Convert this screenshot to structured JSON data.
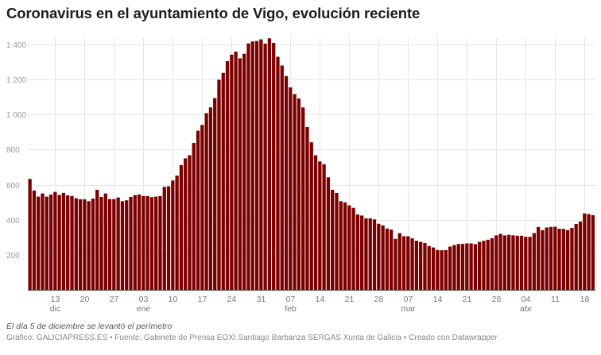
{
  "title": "Coronavirus en el ayuntamiento de Vigo, evolución reciente",
  "note": "El día 5 de diciembre se levantó el perímetro",
  "source": "Gráfico: GALICIAPRESS.ES • Fuente: Gabinete de Prensa EOXI Santiago Barbanza SERGAS Xunta de Galicia • Creado con Datawrapper",
  "chart_data": {
    "type": "bar",
    "title": "Coronavirus en el ayuntamiento de Vigo, evolución reciente",
    "xlabel": "",
    "ylabel": "",
    "ylim": [
      0,
      1450
    ],
    "grid": true,
    "bar_color": "#7d0000",
    "y_ticks": [
      {
        "value": 200,
        "label": "200"
      },
      {
        "value": 400,
        "label": "400"
      },
      {
        "value": 600,
        "label": "600"
      },
      {
        "value": 800,
        "label": "800"
      },
      {
        "value": 1000,
        "label": "1 000"
      },
      {
        "value": 1200,
        "label": "1 200"
      },
      {
        "value": 1400,
        "label": "1 400"
      }
    ],
    "x_ticks": [
      {
        "category": "13 dic",
        "label": "13",
        "month": "dic"
      },
      {
        "category": "20 dic",
        "label": "20",
        "month": ""
      },
      {
        "category": "27 dic",
        "label": "27",
        "month": ""
      },
      {
        "category": "03 ene",
        "label": "03",
        "month": "ene"
      },
      {
        "category": "10 ene",
        "label": "10",
        "month": ""
      },
      {
        "category": "17 ene",
        "label": "17",
        "month": ""
      },
      {
        "category": "24 ene",
        "label": "24",
        "month": ""
      },
      {
        "category": "31 ene",
        "label": "31",
        "month": ""
      },
      {
        "category": "07 feb",
        "label": "07",
        "month": "feb"
      },
      {
        "category": "14 feb",
        "label": "14",
        "month": ""
      },
      {
        "category": "21 feb",
        "label": "21",
        "month": ""
      },
      {
        "category": "28 feb",
        "label": "28",
        "month": ""
      },
      {
        "category": "07 mar",
        "label": "07",
        "month": "mar"
      },
      {
        "category": "14 mar",
        "label": "14",
        "month": ""
      },
      {
        "category": "21 mar",
        "label": "21",
        "month": ""
      },
      {
        "category": "28 mar",
        "label": "28",
        "month": ""
      },
      {
        "category": "04 abr",
        "label": "04",
        "month": "abr"
      },
      {
        "category": "11 abr",
        "label": "11",
        "month": ""
      },
      {
        "category": "18 abr",
        "label": "18",
        "month": ""
      }
    ],
    "categories": [
      "07 dic",
      "08 dic",
      "09 dic",
      "10 dic",
      "11 dic",
      "12 dic",
      "13 dic",
      "14 dic",
      "15 dic",
      "16 dic",
      "17 dic",
      "18 dic",
      "19 dic",
      "20 dic",
      "21 dic",
      "22 dic",
      "23 dic",
      "24 dic",
      "25 dic",
      "26 dic",
      "27 dic",
      "28 dic",
      "29 dic",
      "30 dic",
      "31 dic",
      "01 ene",
      "02 ene",
      "03 ene",
      "04 ene",
      "05 ene",
      "06 ene",
      "07 ene",
      "08 ene",
      "09 ene",
      "10 ene",
      "11 ene",
      "12 ene",
      "13 ene",
      "14 ene",
      "15 ene",
      "16 ene",
      "17 ene",
      "18 ene",
      "19 ene",
      "20 ene",
      "21 ene",
      "22 ene",
      "23 ene",
      "24 ene",
      "25 ene",
      "26 ene",
      "27 ene",
      "28 ene",
      "29 ene",
      "30 ene",
      "31 ene",
      "01 feb",
      "02 feb",
      "03 feb",
      "04 feb",
      "05 feb",
      "06 feb",
      "07 feb",
      "08 feb",
      "09 feb",
      "10 feb",
      "11 feb",
      "12 feb",
      "13 feb",
      "14 feb",
      "15 feb",
      "16 feb",
      "17 feb",
      "18 feb",
      "19 feb",
      "20 feb",
      "21 feb",
      "22 feb",
      "23 feb",
      "24 feb",
      "25 feb",
      "26 feb",
      "27 feb",
      "28 feb",
      "01 mar",
      "02 mar",
      "03 mar",
      "04 mar",
      "05 mar",
      "06 mar",
      "07 mar",
      "08 mar",
      "09 mar",
      "10 mar",
      "11 mar",
      "12 mar",
      "13 mar",
      "14 mar",
      "15 mar",
      "16 mar",
      "17 mar",
      "18 mar",
      "19 mar",
      "20 mar",
      "21 mar",
      "22 mar",
      "23 mar",
      "24 mar",
      "25 mar",
      "26 mar",
      "27 mar",
      "28 mar",
      "29 mar",
      "30 mar",
      "31 mar",
      "01 abr",
      "02 abr",
      "03 abr",
      "04 abr",
      "05 abr",
      "06 abr",
      "07 abr",
      "08 abr",
      "09 abr",
      "10 abr",
      "11 abr",
      "12 abr",
      "13 abr",
      "14 abr",
      "15 abr",
      "16 abr",
      "17 abr",
      "18 abr",
      "19 abr",
      "20 abr"
    ],
    "values": [
      633,
      567,
      532,
      550,
      532,
      544,
      559,
      542,
      553,
      539,
      536,
      523,
      517,
      517,
      506,
      521,
      571,
      530,
      550,
      518,
      518,
      527,
      506,
      511,
      530,
      541,
      544,
      535,
      535,
      529,
      532,
      535,
      588,
      591,
      624,
      652,
      712,
      750,
      768,
      838,
      908,
      941,
      1008,
      1041,
      1094,
      1199,
      1238,
      1305,
      1342,
      1359,
      1321,
      1347,
      1406,
      1417,
      1420,
      1429,
      1405,
      1435,
      1409,
      1330,
      1280,
      1220,
      1155,
      1117,
      1092,
      1041,
      929,
      842,
      768,
      733,
      717,
      642,
      571,
      553,
      506,
      499,
      482,
      468,
      430,
      424,
      408,
      408,
      402,
      377,
      368,
      350,
      344,
      291,
      324,
      306,
      306,
      294,
      280,
      274,
      267,
      250,
      242,
      227,
      226,
      227,
      247,
      256,
      262,
      262,
      265,
      265,
      261,
      274,
      280,
      286,
      295,
      311,
      320,
      311,
      314,
      311,
      309,
      309,
      303,
      303,
      324,
      359,
      341,
      356,
      359,
      360,
      349,
      348,
      341,
      353,
      376,
      390,
      436,
      432,
      426
    ]
  }
}
